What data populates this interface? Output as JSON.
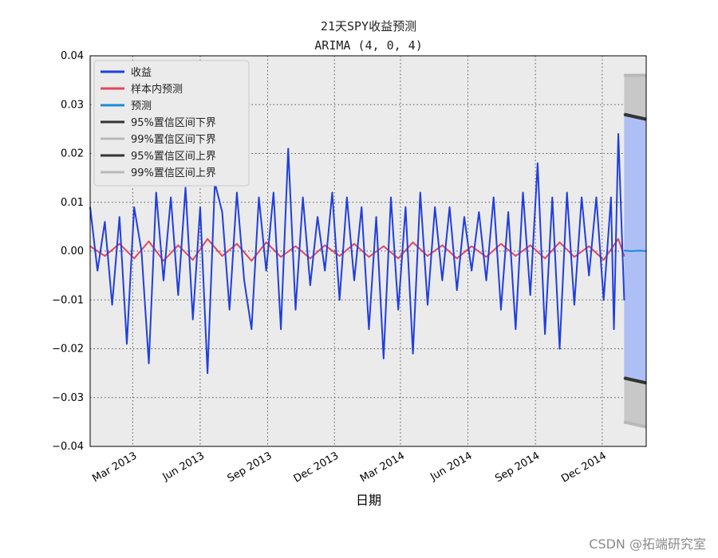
{
  "watermark": "CSDN @拓端研究室",
  "chart_data": {
    "type": "line",
    "title": "21天SPY收益预测",
    "subtitle": "ARIMA (4, 0, 4)",
    "xlabel": "日期",
    "ylabel": "",
    "grid": true,
    "legend_position": "top-left",
    "ylim": [
      -0.04,
      0.04
    ],
    "yticks": [
      0.04,
      0.03,
      0.02,
      0.01,
      0.0,
      -0.01,
      -0.02,
      -0.03,
      -0.04
    ],
    "ytick_labels": [
      "0.04",
      "0.03",
      "0.02",
      "0.01",
      "0.00",
      "−0.01",
      "−0.02",
      "−0.03",
      "−0.04"
    ],
    "xlim": [
      "2013-01-02",
      "2015-01-30"
    ],
    "xticks": [
      "2013-03-01",
      "2013-06-01",
      "2013-09-01",
      "2013-12-01",
      "2014-03-01",
      "2014-06-01",
      "2014-09-01",
      "2014-12-01"
    ],
    "xtick_labels": [
      "Mar 2013",
      "Jun 2013",
      "Sep 2013",
      "Dec 2013",
      "Mar 2014",
      "Jun 2014",
      "Sep 2014",
      "Dec 2014"
    ],
    "series": [
      {
        "name": "收益",
        "color": "#1f3ee0",
        "x": [
          "2013-01-02",
          "2013-01-12",
          "2013-01-22",
          "2013-02-01",
          "2013-02-11",
          "2013-02-21",
          "2013-03-03",
          "2013-03-13",
          "2013-03-23",
          "2013-04-02",
          "2013-04-12",
          "2013-04-22",
          "2013-05-02",
          "2013-05-12",
          "2013-05-22",
          "2013-06-01",
          "2013-06-11",
          "2013-06-21",
          "2013-07-01",
          "2013-07-11",
          "2013-07-21",
          "2013-07-31",
          "2013-08-10",
          "2013-08-20",
          "2013-08-30",
          "2013-09-09",
          "2013-09-19",
          "2013-09-29",
          "2013-10-09",
          "2013-10-19",
          "2013-10-29",
          "2013-11-08",
          "2013-11-18",
          "2013-11-28",
          "2013-12-08",
          "2013-12-18",
          "2013-12-28",
          "2014-01-07",
          "2014-01-17",
          "2014-01-27",
          "2014-02-06",
          "2014-02-16",
          "2014-02-26",
          "2014-03-08",
          "2014-03-18",
          "2014-03-28",
          "2014-04-07",
          "2014-04-17",
          "2014-04-27",
          "2014-05-07",
          "2014-05-17",
          "2014-05-27",
          "2014-06-06",
          "2014-06-16",
          "2014-06-26",
          "2014-07-06",
          "2014-07-16",
          "2014-07-26",
          "2014-08-05",
          "2014-08-15",
          "2014-08-25",
          "2014-09-04",
          "2014-09-14",
          "2014-09-24",
          "2014-10-04",
          "2014-10-14",
          "2014-10-24",
          "2014-11-03",
          "2014-11-13",
          "2014-11-23",
          "2014-12-03",
          "2014-12-13",
          "2014-12-17",
          "2014-12-23",
          "2014-12-31"
        ],
        "y": [
          0.009,
          -0.004,
          0.006,
          -0.011,
          0.007,
          -0.019,
          0.009,
          0.0,
          -0.023,
          0.012,
          -0.006,
          0.011,
          -0.009,
          0.013,
          -0.014,
          0.009,
          -0.025,
          0.014,
          0.008,
          -0.012,
          0.012,
          -0.006,
          -0.016,
          0.011,
          -0.004,
          0.012,
          -0.016,
          0.021,
          -0.012,
          0.011,
          -0.007,
          0.007,
          -0.004,
          0.012,
          -0.01,
          0.011,
          -0.006,
          0.009,
          -0.016,
          0.007,
          -0.022,
          0.011,
          -0.012,
          0.009,
          -0.021,
          0.012,
          -0.011,
          0.009,
          -0.006,
          0.009,
          -0.008,
          0.007,
          -0.004,
          0.008,
          -0.006,
          0.011,
          -0.012,
          0.008,
          -0.016,
          0.012,
          -0.009,
          0.018,
          -0.017,
          0.011,
          -0.02,
          0.012,
          -0.011,
          0.011,
          -0.005,
          0.011,
          -0.01,
          0.011,
          -0.016,
          0.024,
          -0.01
        ]
      },
      {
        "name": "样本内预测",
        "color": "#e0485c",
        "x": [
          "2013-01-02",
          "2013-01-22",
          "2013-02-11",
          "2013-03-03",
          "2013-03-23",
          "2013-04-12",
          "2013-05-02",
          "2013-05-22",
          "2013-06-11",
          "2013-07-01",
          "2013-07-21",
          "2013-08-10",
          "2013-08-30",
          "2013-09-19",
          "2013-10-09",
          "2013-10-29",
          "2013-11-18",
          "2013-12-08",
          "2013-12-28",
          "2014-01-17",
          "2014-02-06",
          "2014-02-26",
          "2014-03-18",
          "2014-04-07",
          "2014-04-27",
          "2014-05-17",
          "2014-06-06",
          "2014-06-26",
          "2014-07-16",
          "2014-08-05",
          "2014-08-25",
          "2014-09-14",
          "2014-10-04",
          "2014-10-24",
          "2014-11-13",
          "2014-12-03",
          "2014-12-23",
          "2014-12-31"
        ],
        "y": [
          0.001,
          -0.001,
          0.0015,
          -0.0015,
          0.002,
          -0.002,
          0.0012,
          -0.0018,
          0.0025,
          -0.001,
          0.0015,
          -0.002,
          0.0018,
          -0.0012,
          0.001,
          -0.0015,
          0.0012,
          -0.001,
          0.0015,
          -0.0012,
          0.001,
          -0.0015,
          0.0018,
          -0.001,
          0.0012,
          -0.0015,
          0.001,
          -0.0012,
          0.0015,
          -0.001,
          0.0012,
          -0.0015,
          0.0018,
          -0.0012,
          0.001,
          -0.0018,
          0.0025,
          -0.001
        ]
      },
      {
        "name": "预测",
        "color": "#1a8cd8",
        "x": [
          "2014-12-31",
          "2015-01-10",
          "2015-01-20",
          "2015-01-30"
        ],
        "y": [
          0.0001,
          0.0,
          0.0001,
          0.0
        ]
      },
      {
        "name": "95%置信区间下界",
        "color": "#333333",
        "x": [
          "2014-12-31",
          "2015-01-30"
        ],
        "y": [
          -0.026,
          -0.027
        ]
      },
      {
        "name": "99%置信区间下界",
        "color": "#b8b8b8",
        "x": [
          "2014-12-31",
          "2015-01-30"
        ],
        "y": [
          -0.035,
          -0.036
        ]
      },
      {
        "name": "95%置信区间上界",
        "color": "#333333",
        "x": [
          "2014-12-31",
          "2015-01-30"
        ],
        "y": [
          0.028,
          0.027
        ]
      },
      {
        "name": "99%置信区间上界",
        "color": "#b8b8b8",
        "x": [
          "2014-12-31",
          "2015-01-30"
        ],
        "y": [
          0.036,
          0.036
        ]
      }
    ],
    "colors": {
      "plot_background": "#ebebeb",
      "fill_99": "#c8c8c8",
      "fill_95": "#adbff5"
    }
  }
}
